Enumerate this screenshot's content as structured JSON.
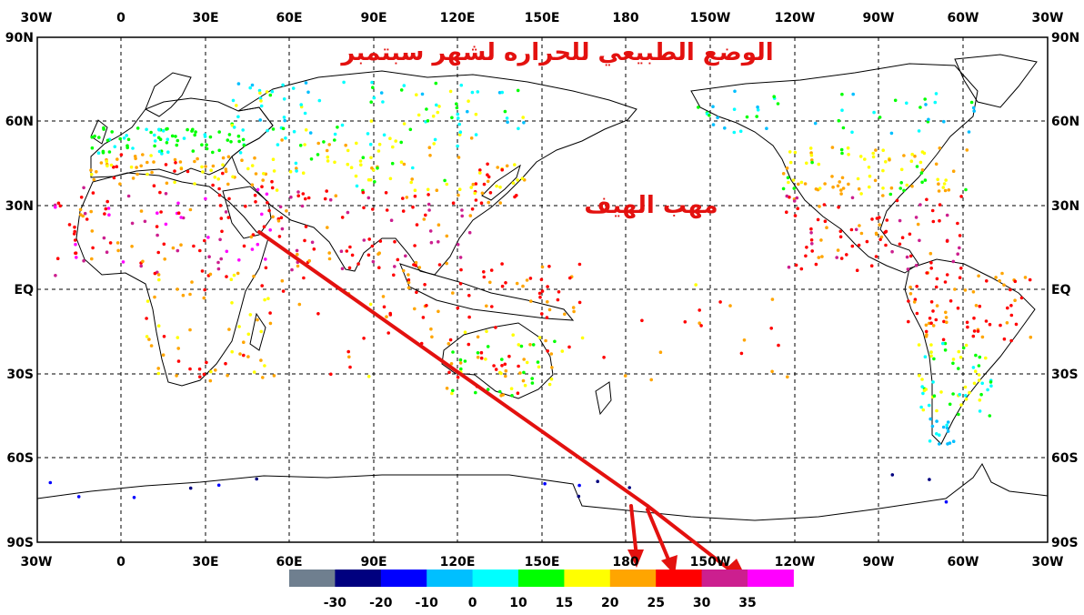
{
  "map": {
    "title": "الوضع الطبيعي للحراره لشهر سبتمبر",
    "annotation": "مهب الهيف",
    "top_axis_labels": [
      "30W",
      "0",
      "30E",
      "60E",
      "90E",
      "120E",
      "150E",
      "180",
      "150W",
      "120W",
      "90W",
      "60W",
      "30W"
    ],
    "bottom_axis_labels": [
      "30W",
      "0",
      "30E",
      "60E",
      "90E",
      "120E",
      "150E",
      "180",
      "150W",
      "120W",
      "90W",
      "60W",
      "30W"
    ],
    "left_axis_labels": [
      "90N",
      "60N",
      "30N",
      "EQ",
      "30S",
      "60S",
      "90S"
    ],
    "right_axis_labels": [
      "90N",
      "60N",
      "30N",
      "EQ",
      "30S",
      "60S",
      "90S"
    ],
    "grid": true,
    "arrow_color": "#e3110f",
    "land_outline_color": "#000000"
  },
  "colorbar": {
    "colors": [
      "#6f7f8f",
      "#00007f",
      "#0000ff",
      "#00bfff",
      "#00ffff",
      "#00ff00",
      "#ffff00",
      "#ffa500",
      "#ff0000",
      "#cc1f8f",
      "#ff00ff"
    ],
    "labels": [
      "-30",
      "-20",
      "-10",
      "0",
      "10",
      "15",
      "20",
      "25",
      "30",
      "35"
    ]
  }
}
